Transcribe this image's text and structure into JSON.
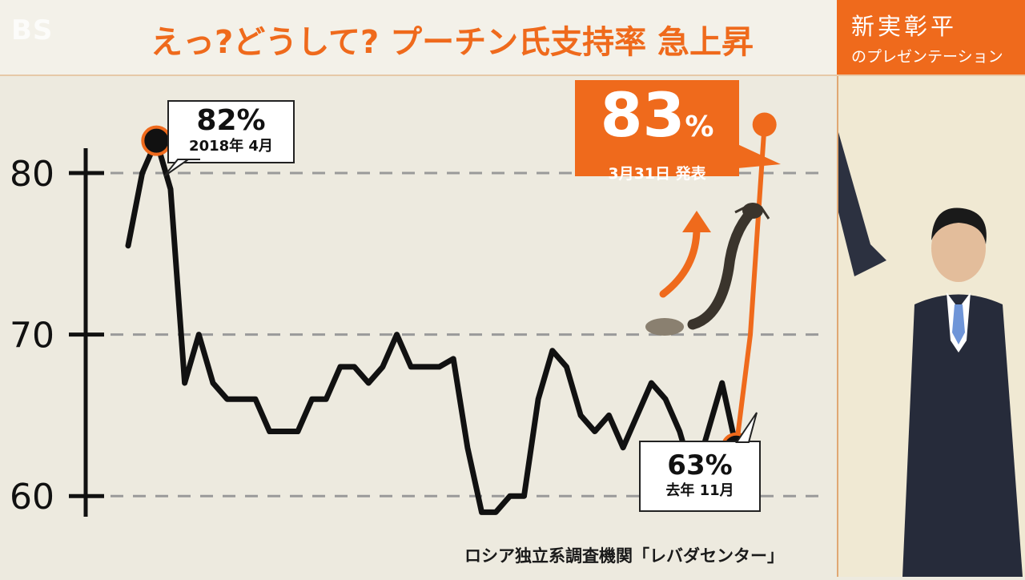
{
  "header": {
    "logo": "BS",
    "headline": "えっ?どうして? プーチン氏支持率 急上昇",
    "presenter_name": "新実彰平",
    "presenter_sub": "のプレゼンテーション"
  },
  "source": "ロシア独立系調査機関「レバダセンター」",
  "callouts": {
    "peak_value": "82%",
    "peak_date": "2018年 4月",
    "low_value": "63%",
    "low_date": "去年 11月",
    "latest_value": "83",
    "latest_unit": "%",
    "latest_date": "3月31日 発表"
  },
  "colors": {
    "line": "#111111",
    "accent": "#ef6a1c",
    "grid": "#9a9a9a"
  },
  "chart_data": {
    "type": "line",
    "title": "えっ?どうして? プーチン氏支持率 急上昇",
    "xlabel": "",
    "ylabel": "",
    "ylim": [
      55,
      86
    ],
    "yticks": [
      60,
      70,
      80
    ],
    "grid": "horizontal dashed",
    "x_index_range": [
      0,
      47
    ],
    "series": [
      {
        "color": "black",
        "x": [
          0,
          1,
          2,
          3,
          4,
          5,
          6,
          7,
          8,
          9,
          10,
          11,
          12,
          13,
          14,
          15,
          16,
          17,
          18,
          19,
          20,
          21,
          22,
          23,
          24,
          25,
          26,
          27,
          28,
          29,
          30,
          31,
          32,
          33,
          34,
          35,
          36,
          37,
          38,
          39,
          40,
          41,
          42,
          43
        ],
        "values": [
          75.5,
          80,
          82,
          79,
          67,
          70,
          67,
          66,
          66,
          66,
          64,
          64,
          64,
          66,
          66,
          68,
          68,
          67,
          68,
          70,
          68,
          68,
          68,
          68.5,
          63,
          59,
          59,
          60,
          60,
          66,
          69,
          68,
          65,
          64,
          65,
          63,
          65,
          67,
          66,
          64,
          61,
          64,
          67,
          63
        ]
      },
      {
        "color": "orange",
        "x": [
          43,
          44,
          45
        ],
        "values": [
          63,
          70,
          83
        ]
      }
    ],
    "annotations": [
      {
        "label": "82%",
        "sub": "2018年 4月",
        "x": 2,
        "y": 82
      },
      {
        "label": "63%",
        "sub": "去年 11月",
        "x": 43,
        "y": 63
      },
      {
        "label": "83%",
        "sub": "3月31日 発表",
        "x": 45,
        "y": 83
      }
    ]
  }
}
